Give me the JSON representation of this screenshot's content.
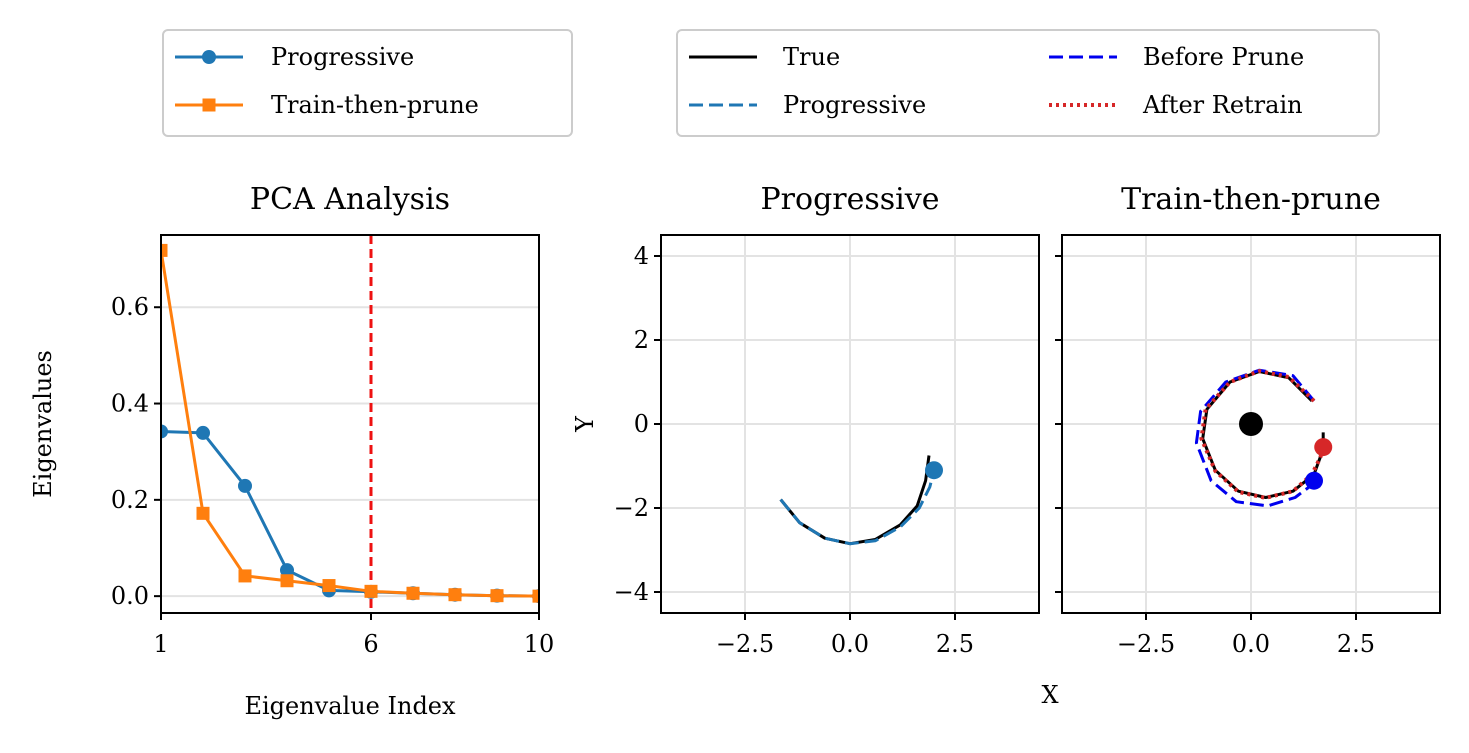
{
  "chart_data": [
    {
      "type": "line",
      "title": "PCA Analysis",
      "xlabel": "Eigenvalue Index",
      "ylabel": "Eigenvalues",
      "xlim": [
        1,
        10
      ],
      "ylim": [
        -0.035,
        0.75
      ],
      "xticks": [
        1,
        6,
        10
      ],
      "xtick_labels": [
        "1",
        "6",
        "10"
      ],
      "yticks": [
        0.0,
        0.2,
        0.4,
        0.6
      ],
      "ytick_labels": [
        "0.0",
        "0.2",
        "0.4",
        "0.6"
      ],
      "grid": "horizontal",
      "vline": {
        "x": 6,
        "color": "#ee1111"
      },
      "series": [
        {
          "name": "Progressive",
          "marker": "circle",
          "color": "#1f77b4",
          "x": [
            1,
            2,
            3,
            4,
            5,
            6,
            7,
            8,
            9,
            10
          ],
          "values": [
            0.342,
            0.339,
            0.229,
            0.054,
            0.012,
            0.009,
            0.006,
            0.003,
            0.001,
            0.0
          ]
        },
        {
          "name": "Train-then-prune",
          "marker": "square",
          "color": "#ff7f0e",
          "x": [
            1,
            2,
            3,
            4,
            5,
            6,
            7,
            8,
            9,
            10
          ],
          "values": [
            0.718,
            0.172,
            0.042,
            0.032,
            0.022,
            0.01,
            0.006,
            0.003,
            0.001,
            0.0
          ]
        }
      ],
      "legend": {
        "placement": "above",
        "entries": [
          "Progressive",
          "Train-then-prune"
        ]
      }
    },
    {
      "type": "line",
      "title": "Progressive",
      "xlabel": "X",
      "ylabel": "Y",
      "xlim": [
        -4.5,
        4.5
      ],
      "ylim": [
        -4.5,
        4.5
      ],
      "xticks": [
        -2.5,
        0.0,
        2.5
      ],
      "xtick_labels": [
        "−2.5",
        "0.0",
        "2.5"
      ],
      "yticks": [
        -4,
        -2,
        0,
        2,
        4
      ],
      "ytick_labels": [
        "−4",
        "−2",
        "0",
        "2",
        "4"
      ],
      "grid": "both",
      "series": [
        {
          "name": "True",
          "color": "#000000",
          "style": "solid",
          "x": [
            -1.65,
            -1.2,
            -0.6,
            0.0,
            0.6,
            1.2,
            1.6,
            1.8,
            1.88
          ],
          "y": [
            -1.8,
            -2.35,
            -2.72,
            -2.85,
            -2.75,
            -2.4,
            -1.95,
            -1.35,
            -0.75
          ]
        },
        {
          "name": "Progressive",
          "color": "#1f77b4",
          "style": "dashed",
          "x": [
            -1.65,
            -1.2,
            -0.6,
            0.0,
            0.6,
            1.2,
            1.65,
            1.9,
            2.0
          ],
          "y": [
            -1.8,
            -2.35,
            -2.72,
            -2.85,
            -2.78,
            -2.45,
            -2.0,
            -1.5,
            -1.1
          ]
        }
      ],
      "points": [
        {
          "label": "Progressive end",
          "x": 2.0,
          "y": -1.1,
          "color": "#1f77b4"
        }
      ]
    },
    {
      "type": "line",
      "title": "Train-then-prune",
      "xlim": [
        -4.5,
        4.5
      ],
      "ylim": [
        -4.5,
        4.5
      ],
      "xticks": [
        -2.5,
        0.0,
        2.5
      ],
      "xtick_labels": [
        "−2.5",
        "0.0",
        "2.5"
      ],
      "yticks": [
        -4,
        -2,
        0,
        2,
        4
      ],
      "grid": "both",
      "series": [
        {
          "name": "True",
          "color": "#000000",
          "style": "solid",
          "x": [
            1.45,
            0.9,
            0.2,
            -0.5,
            -1.05,
            -1.15,
            -0.85,
            -0.3,
            0.35,
            1.0,
            1.5,
            1.72,
            1.72
          ],
          "y": [
            0.55,
            1.1,
            1.25,
            1.0,
            0.35,
            -0.35,
            -1.1,
            -1.6,
            -1.75,
            -1.6,
            -1.2,
            -0.6,
            -0.2
          ]
        },
        {
          "name": "Before Prune",
          "color": "#0000ee",
          "style": "dashed",
          "x": [
            1.5,
            1.0,
            0.2,
            -0.6,
            -1.2,
            -1.3,
            -0.95,
            -0.35,
            0.4,
            1.05,
            1.45,
            1.5
          ],
          "y": [
            0.55,
            1.15,
            1.28,
            1.0,
            0.3,
            -0.45,
            -1.35,
            -1.85,
            -1.95,
            -1.75,
            -1.45,
            -1.35
          ]
        },
        {
          "name": "After Retrain",
          "color": "#d62728",
          "style": "dotted",
          "x": [
            1.5,
            0.9,
            0.2,
            -0.5,
            -1.08,
            -1.18,
            -0.85,
            -0.3,
            0.35,
            1.0,
            1.45,
            1.65,
            1.72
          ],
          "y": [
            0.55,
            1.12,
            1.26,
            1.0,
            0.35,
            -0.35,
            -1.12,
            -1.62,
            -1.76,
            -1.6,
            -1.2,
            -0.8,
            -0.55
          ]
        }
      ],
      "points": [
        {
          "label": "Origin",
          "x": 0.0,
          "y": 0.0,
          "color": "#000000"
        },
        {
          "label": "Before Prune end",
          "x": 1.5,
          "y": -1.35,
          "color": "#0000ee"
        },
        {
          "label": "After Retrain end",
          "x": 1.72,
          "y": -0.55,
          "color": "#d62728"
        }
      ]
    }
  ],
  "shared": {
    "x_axis_label": "X"
  },
  "legends": {
    "left": [
      {
        "label": "Progressive",
        "color": "#1f77b4",
        "marker": "circle"
      },
      {
        "label": "Train-then-prune",
        "color": "#ff7f0e",
        "marker": "square"
      }
    ],
    "right": [
      {
        "label": "True",
        "color": "#000000",
        "style": "solid"
      },
      {
        "label": "Before Prune",
        "color": "#0000ee",
        "style": "dashed"
      },
      {
        "label": "Progressive",
        "color": "#1f77b4",
        "style": "dashed"
      },
      {
        "label": "After Retrain",
        "color": "#d62728",
        "style": "dotted"
      }
    ]
  }
}
